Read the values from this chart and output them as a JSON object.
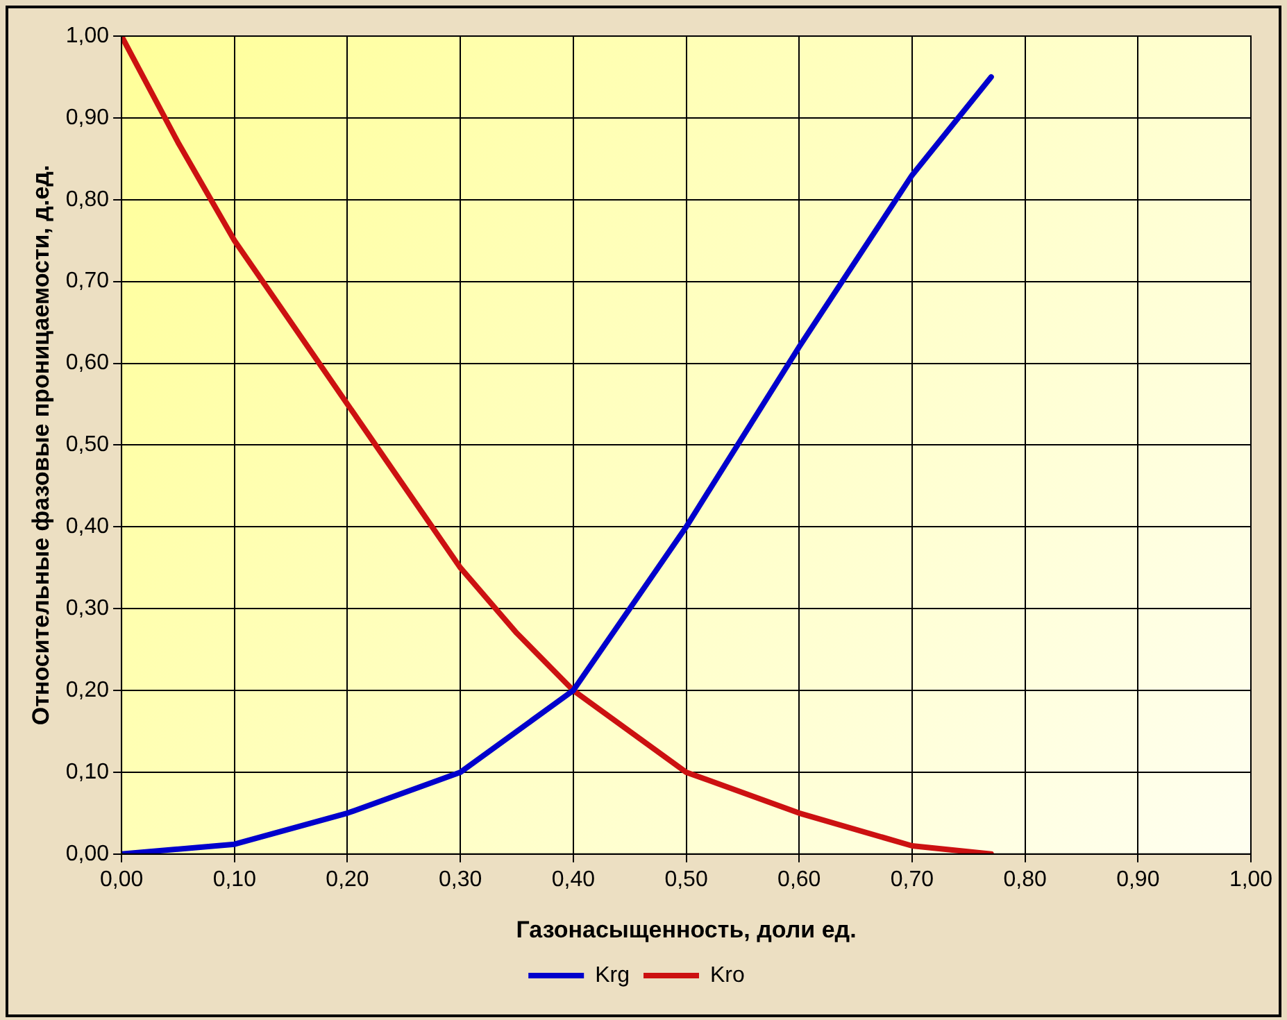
{
  "chart_data": {
    "type": "line",
    "xlabel": "Газонасыщенность, доли ед.",
    "ylabel": "Относительные фазовые проницаемости, д.ед.",
    "xlim": [
      0,
      1
    ],
    "xticks": [
      {
        "value": 0,
        "label": "0,00"
      },
      {
        "value": 0.1,
        "label": "0,10"
      },
      {
        "value": 0.2,
        "label": "0,20"
      },
      {
        "value": 0.3,
        "label": "0,30"
      },
      {
        "value": 0.4,
        "label": "0,40"
      },
      {
        "value": 0.5,
        "label": "0,50"
      },
      {
        "value": 0.6,
        "label": "0,60"
      },
      {
        "value": 0.7,
        "label": "0,70"
      },
      {
        "value": 0.8,
        "label": "0,80"
      },
      {
        "value": 0.9,
        "label": "0,90"
      },
      {
        "value": 1,
        "label": "1,00"
      }
    ],
    "ylim": [
      0,
      1
    ],
    "yticks": [
      {
        "value": 0,
        "label": "0,00"
      },
      {
        "value": 0.1,
        "label": "0,10"
      },
      {
        "value": 0.2,
        "label": "0,20"
      },
      {
        "value": 0.3,
        "label": "0,30"
      },
      {
        "value": 0.4,
        "label": "0,40"
      },
      {
        "value": 0.5,
        "label": "0,50"
      },
      {
        "value": 0.6,
        "label": "0,60"
      },
      {
        "value": 0.7,
        "label": "0,70"
      },
      {
        "value": 0.8,
        "label": "0,80"
      },
      {
        "value": 0.9,
        "label": "0,90"
      },
      {
        "value": 1,
        "label": "1,00"
      }
    ],
    "grid": true,
    "legend": "bottom",
    "marker": "none",
    "line_style": "solid",
    "series": [
      {
        "name": "Krg",
        "color": "#0000cc",
        "x": [
          0,
          0.1,
          0.2,
          0.3,
          0.4,
          0.5,
          0.6,
          0.7,
          0.77
        ],
        "values": [
          0,
          0.012,
          0.05,
          0.1,
          0.2,
          0.4,
          0.62,
          0.83,
          0.95
        ]
      },
      {
        "name": "Kro",
        "color": "#cc1111",
        "x": [
          0,
          0.05,
          0.1,
          0.15,
          0.2,
          0.3,
          0.35,
          0.4,
          0.5,
          0.6,
          0.7,
          0.77
        ],
        "values": [
          1,
          0.87,
          0.75,
          0.65,
          0.55,
          0.35,
          0.27,
          0.2,
          0.1,
          0.05,
          0.01,
          0
        ]
      }
    ]
  }
}
